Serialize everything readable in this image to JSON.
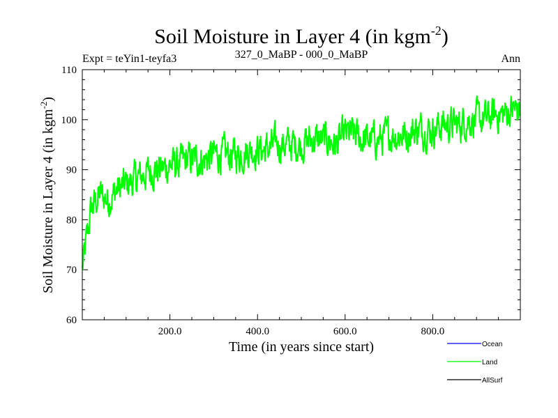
{
  "chart_data": {
    "type": "line",
    "title": "Soil Moisture in Layer 4 (in kgm",
    "title_sup": "-2",
    "title_close": ")",
    "subtitle_left": "Expt = teYin1-teyfa3",
    "subtitle_center": "327_0_MaBP - 000_0_MaBP",
    "subtitle_right": "Ann",
    "xlabel": "Time (in years since start)",
    "ylabel": "Soil Moisture in Layer 4 (in kgm",
    "ylabel_sup": "-2",
    "ylabel_close": ")",
    "xlim": [
      0,
      1000
    ],
    "ylim": [
      60,
      110
    ],
    "xticks": [
      200,
      400,
      600,
      800
    ],
    "xtick_labels": [
      "200.0",
      "400.0",
      "600.0",
      "800.0"
    ],
    "yticks": [
      60,
      70,
      80,
      90,
      100,
      110
    ],
    "ytick_labels": [
      "60",
      "70",
      "80",
      "90",
      "100",
      "110"
    ],
    "legend_position": "bottom-right",
    "series": [
      {
        "name": "Ocean",
        "color": "#0000ff",
        "values": []
      },
      {
        "name": "Land",
        "color": "#00ff00",
        "x": [
          0,
          20,
          40,
          60,
          80,
          100,
          120,
          140,
          160,
          180,
          200,
          220,
          240,
          260,
          280,
          300,
          320,
          340,
          360,
          380,
          400,
          420,
          440,
          460,
          480,
          500,
          520,
          540,
          560,
          580,
          600,
          620,
          640,
          660,
          680,
          700,
          720,
          740,
          760,
          780,
          800,
          820,
          840,
          860,
          880,
          900,
          920,
          940,
          960,
          980,
          1000
        ],
        "values": [
          70,
          82,
          85,
          84,
          86,
          87,
          88,
          89,
          90,
          90,
          91,
          91,
          92,
          92,
          92,
          93,
          93,
          93,
          93,
          94,
          94,
          94,
          95,
          95,
          95,
          95,
          96,
          96,
          96,
          95,
          97,
          97,
          96,
          96,
          96,
          97,
          97,
          97,
          98,
          98,
          98,
          99,
          99,
          99,
          100,
          100,
          100,
          101,
          101,
          102,
          102
        ]
      },
      {
        "name": "AllSurf",
        "color": "#000000",
        "values": []
      }
    ]
  }
}
